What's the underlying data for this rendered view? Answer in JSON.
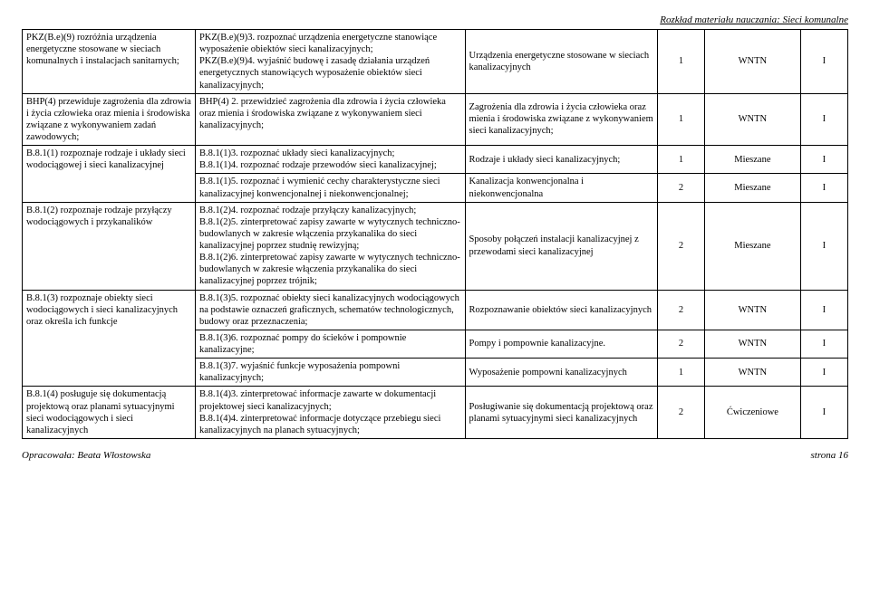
{
  "header_right": "Rozkład materiału nauczania: Sieci komunalne",
  "footer_left": "Opracowała: Beata Włostowska",
  "footer_right": "strona 16",
  "rows": [
    {
      "c1": "PKZ(B.e)(9) rozróżnia urządzenia energetyczne stosowane w sieciach komunalnych i instalacjach sanitarnych;",
      "c2": "PKZ(B.e)(9)3. rozpoznać urządzenia energetyczne stanowiące wyposażenie obiektów sieci kanalizacyjnych;\nPKZ(B.e)(9)4. wyjaśnić budowę i zasadę działania urządzeń energetycznych stanowiących wyposażenie obiektów sieci kanalizacyjnych;",
      "c3": "Urządzenia energetyczne stosowane w sieciach kanalizacyjnych",
      "c4": "1",
      "c5": "WNTN",
      "c6": "I"
    },
    {
      "c1": "BHP(4) przewiduje zagrożenia dla zdrowia i życia człowieka oraz mienia i środowiska związane z wykonywaniem zadań zawodowych;",
      "c2": "BHP(4) 2. przewidzieć zagrożenia dla zdrowia i życia człowieka oraz mienia i środowiska związane z wykonywaniem sieci kanalizacyjnych;",
      "c3": "Zagrożenia dla zdrowia i życia człowieka oraz mienia i środowiska związane z wykonywaniem sieci kanalizacyjnych;",
      "c4": "1",
      "c5": "WNTN",
      "c6": "I"
    },
    {
      "c1": "B.8.1(1) rozpoznaje rodzaje i układy sieci wodociągowej i sieci kanalizacyjnej",
      "c1_rowspan": 2,
      "c2": "B.8.1(1)3. rozpoznać układy sieci kanalizacyjnych;\nB.8.1(1)4. rozpoznać rodzaje przewodów sieci kanalizacyjnej;",
      "c3": "Rodzaje i układy sieci kanalizacyjnych;",
      "c4": "1",
      "c5": "Mieszane",
      "c6": "I"
    },
    {
      "c2": "B.8.1(1)5. rozpoznać i wymienić cechy charakterystyczne sieci kanalizacyjnej konwencjonalnej i niekonwencjonalnej;",
      "c3": "Kanalizacja konwencjonalna i niekonwencjonalna",
      "c4": "2",
      "c5": "Mieszane",
      "c6": "I"
    },
    {
      "c1": "B.8.1(2) rozpoznaje rodzaje przyłączy wodociągowych i przykanalików",
      "c2": "B.8.1(2)4. rozpoznać rodzaje przyłączy kanalizacyjnych;\nB.8.1(2)5. zinterpretować zapisy zawarte w wytycznych techniczno-budowlanych w zakresie włączenia przykanalika do sieci kanalizacyjnej poprzez studnię rewizyjną;\nB.8.1(2)6. zinterpretować zapisy zawarte w wytycznych techniczno-budowlanych w zakresie włączenia przykanalika do sieci kanalizacyjnej poprzez trójnik;",
      "c3": "Sposoby połączeń instalacji kanalizacyjnej z przewodami sieci kanalizacyjnej",
      "c4": "2",
      "c5": "Mieszane",
      "c6": "I"
    },
    {
      "c1": "B.8.1(3) rozpoznaje obiekty sieci wodociągowych i sieci kanalizacyjnych oraz określa ich funkcje",
      "c1_rowspan": 3,
      "c2": "B.8.1(3)5. rozpoznać obiekty sieci kanalizacyjnych wodociągowych na podstawie oznaczeń graficznych, schematów technologicznych, budowy oraz przeznaczenia;",
      "c3": "Rozpoznawanie obiektów sieci kanalizacyjnych",
      "c4": "2",
      "c5": "WNTN",
      "c6": "I"
    },
    {
      "c2": "B.8.1(3)6. rozpoznać pompy do ścieków i pompownie kanalizacyjne;",
      "c3": "Pompy i pompownie kanalizacyjne.",
      "c4": "2",
      "c5": "WNTN",
      "c6": "I"
    },
    {
      "c2": "B.8.1(3)7. wyjaśnić funkcje wyposażenia pompowni kanalizacyjnych;",
      "c3": "Wyposażenie pompowni kanalizacyjnych",
      "c4": "1",
      "c5": "WNTN",
      "c6": "I"
    },
    {
      "c1": "B.8.1(4) posługuje się dokumentacją projektową oraz planami sytuacyjnymi sieci wodociągowych i sieci kanalizacyjnych",
      "c2": "B.8.1(4)3. zinterpretować informacje zawarte w dokumentacji projektowej sieci kanalizacyjnych;\nB.8.1(4)4. zinterpretować informacje dotyczące przebiegu sieci kanalizacyjnych na planach sytuacyjnych;",
      "c3": "Posługiwanie się dokumentacją projektową oraz planami sytuacyjnymi sieci kanalizacyjnych",
      "c4": "2",
      "c5": "Ćwiczeniowe",
      "c6": "I"
    }
  ]
}
